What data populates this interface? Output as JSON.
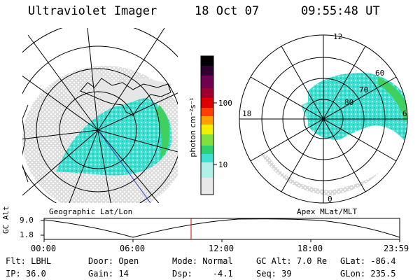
{
  "header": {
    "title": "Ultraviolet Imager",
    "date": "18 Oct 07",
    "time": "09:55:48 UT"
  },
  "colorbar": {
    "unit_label": "photon cm⁻²s⁻¹",
    "ticks": [
      "100",
      "10"
    ],
    "colors": [
      "#e8e8e8",
      "#b0f0e8",
      "#40e0d0",
      "#20c8c0",
      "#30d070",
      "#80e040",
      "#f0f000",
      "#ffa000",
      "#ff4000",
      "#e00000",
      "#a00030",
      "#700050",
      "#300030",
      "#000000"
    ]
  },
  "left_panel": {
    "caption": "Geographic Lat/Lon"
  },
  "right_panel": {
    "caption": "Apex MLat/MLT",
    "mlt_labels": [
      "12",
      "18",
      "6",
      "0"
    ],
    "lat_labels": [
      "60",
      "70",
      "80"
    ]
  },
  "altitude_strip": {
    "ylabel": "GC Alt",
    "yticks": [
      "9.0",
      "1.8"
    ],
    "xticks": [
      "00:00",
      "06:00",
      "12:00",
      "18:00",
      "23:59"
    ],
    "marker_time_hours": 9.93
  },
  "info": {
    "row1": [
      {
        "k": "Flt:",
        "v": "LBHL"
      },
      {
        "k": "Door:",
        "v": "Open"
      },
      {
        "k": "Mode:",
        "v": "Normal"
      },
      {
        "k": "GC Alt:",
        "v": "7.0 Re"
      },
      {
        "k": "GLat:",
        "v": "-86.4"
      }
    ],
    "row2": [
      {
        "k": "IP:",
        "v": "36.0"
      },
      {
        "k": "Gain:",
        "v": "14"
      },
      {
        "k": "Dsp:",
        "v": "-4.1"
      },
      {
        "k": "Seq:",
        "v": "39"
      },
      {
        "k": "GLon:",
        "v": "235.5"
      }
    ]
  },
  "colors": {
    "accent_marker": "#d00000",
    "blue_line": "#3040c0"
  }
}
